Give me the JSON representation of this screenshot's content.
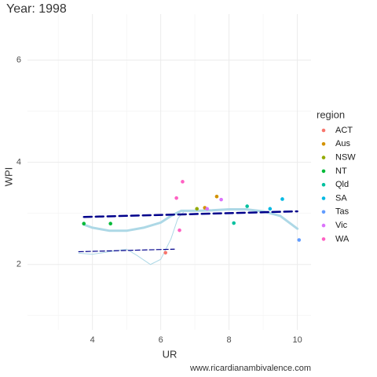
{
  "chart_data": {
    "type": "scatter",
    "title": "Year: 1998",
    "x_label": "UR",
    "y_label": "WPI",
    "legend_title": "region",
    "caption": "www.ricardianambivalence.com",
    "xlim": [
      2.1,
      10.4
    ],
    "ylim": [
      0.72,
      6.9
    ],
    "xticks": [
      4,
      6,
      8,
      10
    ],
    "yticks": [
      2,
      4,
      6
    ],
    "xminor": [
      3,
      5,
      7,
      9
    ],
    "yminor": [
      1,
      3,
      5
    ],
    "grid": true,
    "series": [
      {
        "name": "ACT",
        "color": "#F8766D",
        "x": [
          6.14
        ],
        "y": [
          2.23
        ]
      },
      {
        "name": "Aus",
        "color": "#D39200",
        "x": [
          7.29,
          7.64
        ],
        "y": [
          3.11,
          3.33
        ]
      },
      {
        "name": "NSW",
        "color": "#93AA00",
        "x": [
          7.06
        ],
        "y": [
          3.09
        ]
      },
      {
        "name": "NT",
        "color": "#00BA38",
        "x": [
          3.75,
          4.53
        ],
        "y": [
          2.8,
          2.8
        ]
      },
      {
        "name": "Qld",
        "color": "#00C19F",
        "x": [
          8.14,
          8.53
        ],
        "y": [
          2.81,
          3.14
        ]
      },
      {
        "name": "SA",
        "color": "#00B9E3",
        "x": [
          9.56,
          9.2
        ],
        "y": [
          3.28,
          3.09
        ]
      },
      {
        "name": "Tas",
        "color": "#619CFF",
        "x": [
          10.05
        ],
        "y": [
          2.48
        ]
      },
      {
        "name": "Vic",
        "color": "#DB72FB",
        "x": [
          7.77,
          7.36
        ],
        "y": [
          3.27,
          3.09
        ]
      },
      {
        "name": "WA",
        "color": "#FF61C3",
        "x": [
          6.64,
          6.46,
          6.55
        ],
        "y": [
          3.62,
          3.3,
          2.67
        ]
      }
    ],
    "lines": [
      {
        "color": "#add8e6",
        "width": 3,
        "dash": "none",
        "x": [
          3.75,
          4,
          4.5,
          5,
          5.5,
          6,
          6.3,
          6.6,
          7,
          7.5,
          8,
          8.5,
          9,
          9.5,
          10
        ],
        "y": [
          2.78,
          2.72,
          2.66,
          2.66,
          2.72,
          2.82,
          2.95,
          3.05,
          3.05,
          3.06,
          3.08,
          3.08,
          3.04,
          2.95,
          2.7
        ]
      },
      {
        "color": "#add8e6",
        "width": 1,
        "dash": "none",
        "x": [
          3.6,
          4,
          4.5,
          5,
          5.3,
          5.7,
          6,
          6.3,
          6.5,
          6.7
        ],
        "y": [
          2.22,
          2.2,
          2.25,
          2.3,
          2.18,
          2.0,
          2.1,
          2.5,
          2.9,
          3.05
        ]
      },
      {
        "color": "#00008b",
        "width": 2.5,
        "dash": "10 5",
        "x": [
          3.75,
          10
        ],
        "y": [
          2.93,
          3.04
        ]
      },
      {
        "color": "#00008b",
        "width": 1.2,
        "dash": "6 3",
        "x": [
          3.6,
          6.4
        ],
        "y": [
          2.25,
          2.3
        ]
      }
    ]
  }
}
